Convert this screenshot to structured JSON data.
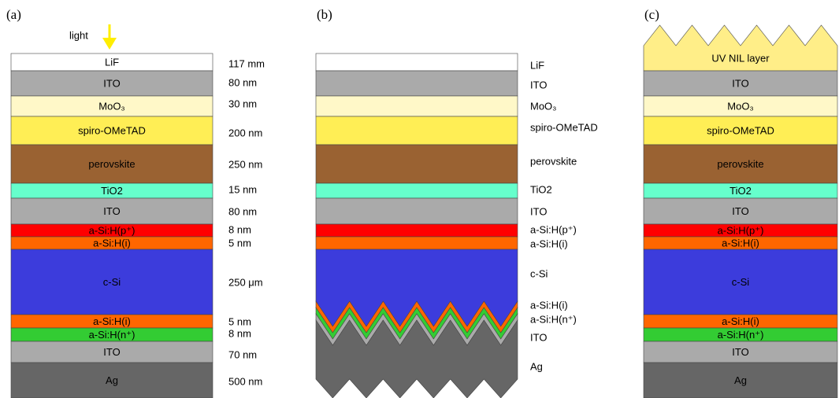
{
  "light": "light",
  "panels": [
    {
      "label": "(a)",
      "layers": [
        "LiF",
        "ITO",
        "MoO₃",
        "spiro-OMeTAD",
        "perovskite",
        "TiO2",
        "ITO",
        "a-Si:H(p⁺)",
        "a-Si:H(i)",
        "c-Si",
        "a-Si:H(i)",
        "a-Si:H(n⁺)",
        "ITO",
        "Ag"
      ],
      "thicknesses": [
        "117 mm",
        "80 nm",
        "30 nm",
        "200 nm",
        "250 nm",
        "15 nm",
        "80 nm",
        "8 nm",
        "5 nm",
        "250 μm",
        "5 nm",
        "8 nm",
        "70 nm",
        "500 nm"
      ]
    },
    {
      "label": "(b)",
      "layers": [
        "LiF",
        "ITO",
        "MoO₃",
        "spiro-OMeTAD",
        "perovskite",
        "TiO2",
        "ITO",
        "a-Si:H(p⁺)",
        "a-Si:H(i)",
        "c-Si",
        "a-Si:H(i)",
        "a-Si:H(n⁺)",
        "ITO",
        "Ag"
      ]
    },
    {
      "label": "(c)",
      "layers": [
        "UV NIL layer",
        "ITO",
        "MoO₃",
        "spiro-OMeTAD",
        "perovskite",
        "TiO2",
        "ITO",
        "a-Si:H(p⁺)",
        "a-Si:H(i)",
        "c-Si",
        "a-Si:H(i)",
        "a-Si:H(n⁺)",
        "ITO",
        "Ag"
      ]
    }
  ]
}
